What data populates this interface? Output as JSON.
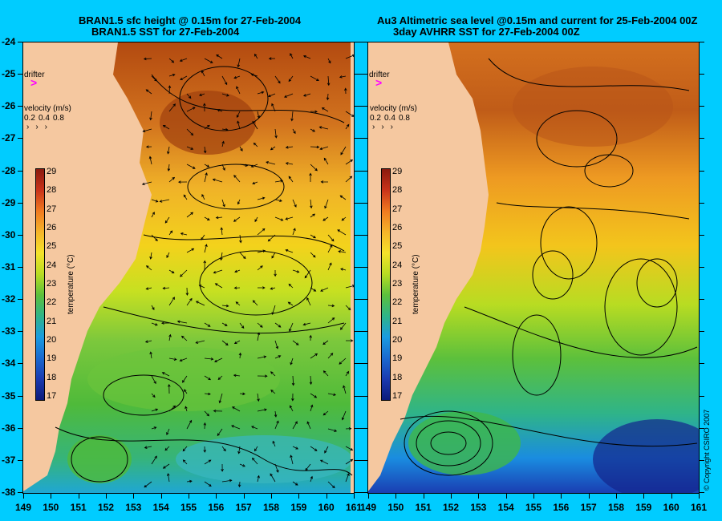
{
  "left_panel": {
    "title_line1": "BRAN1.5 sfc height @ 0.15m for 27-Feb-2004",
    "title_line2": "BRAN1.5 SST for 27-Feb-2004",
    "drifter_label": "drifter",
    "velocity_label": "velocity (m/s)",
    "velocity_scale": [
      "0.2",
      "0.4",
      "0.8"
    ],
    "colorbar_label": "temperature (°C)",
    "colorbar_ticks": [
      "29",
      "28",
      "27",
      "26",
      "25",
      "24",
      "23",
      "22",
      "21",
      "20",
      "19",
      "18",
      "17"
    ]
  },
  "right_panel": {
    "title_line1": "Au3 Altimetric sea level  @0.15m and current for 25-Feb-2004 00Z",
    "title_line2": "3day AVHRR SST for 27-Feb-2004 00Z",
    "drifter_label": "drifter",
    "velocity_label": "velocity (m/s)",
    "velocity_scale": [
      "0.2",
      "0.4",
      "0.8"
    ],
    "colorbar_label": "temperature (°C)",
    "colorbar_ticks": [
      "29",
      "28",
      "27",
      "26",
      "25",
      "24",
      "23",
      "22",
      "21",
      "20",
      "19",
      "18",
      "17"
    ],
    "copyright": "© Copyright CSIRO 2007"
  },
  "y_ticks": [
    "-24",
    "-25",
    "-26",
    "-27",
    "-28",
    "-29",
    "-30",
    "-31",
    "-32",
    "-33",
    "-34",
    "-35",
    "-36",
    "-37",
    "-38"
  ],
  "x_ticks": [
    "149",
    "150",
    "151",
    "152",
    "153",
    "154",
    "155",
    "156",
    "157",
    "158",
    "159",
    "160",
    "161"
  ],
  "colors": {
    "background": "#00ccff",
    "land": "#f5c8a0",
    "drifter": "#ff00ff"
  }
}
